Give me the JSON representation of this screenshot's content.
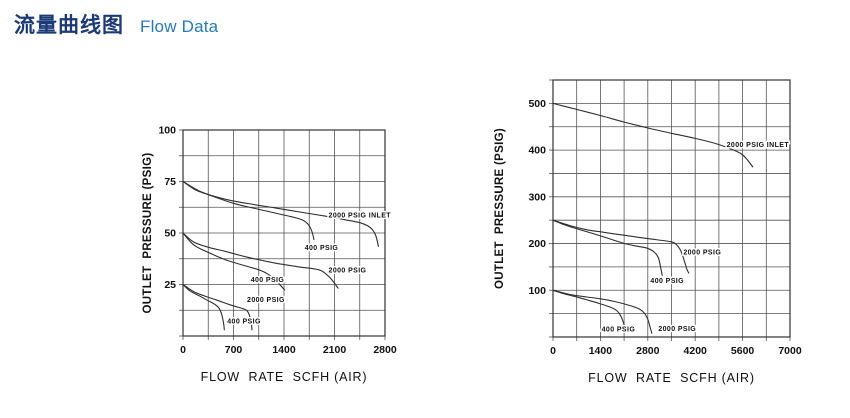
{
  "page": {
    "title_zh": "流量曲线图",
    "title_en": "Flow Data",
    "colors": {
      "title_zh": "#1b3a78",
      "title_en": "#1e7ac6",
      "curve": "#2f2f2f",
      "grid": "#555555",
      "border": "#333333",
      "text": "#111111"
    }
  },
  "chart_data": [
    {
      "id": "low-pressure",
      "type": "line",
      "title": "",
      "xlabel": "FLOW  RATE  SCFH (AIR)",
      "ylabel": "OUTLET  PRESSURE (PSIG)",
      "xlim": [
        0,
        2800
      ],
      "ylim": [
        0,
        100
      ],
      "x_ticks": [
        0,
        700,
        1400,
        2100,
        2800
      ],
      "y_ticks": [
        25,
        50,
        75,
        100
      ],
      "x_grid_step": 350,
      "y_grid_step": 12.5,
      "grid": true,
      "legend_position": "inline-curve-labels",
      "series": [
        {
          "name": "inlet-2000-psig-set-75",
          "label": "2000 PSIG INLET",
          "label_at": [
            2450,
            58.8
          ],
          "points": [
            [
              0,
              75
            ],
            [
              250,
              70
            ],
            [
              582,
              66.4
            ],
            [
              900,
              64.3
            ],
            [
              1275,
              62.2
            ],
            [
              1620,
              60.2
            ],
            [
              1969,
              58.2
            ],
            [
              2250,
              56.4
            ],
            [
              2480,
              54.7
            ],
            [
              2600,
              52.5
            ],
            [
              2670,
              49
            ],
            [
              2708,
              43.5
            ]
          ]
        },
        {
          "name": "inlet-400-psig-set-75",
          "label": "400 PSIG",
          "label_at": [
            1920,
            43
          ],
          "points": [
            [
              0,
              75
            ],
            [
              180,
              70.8
            ],
            [
              350,
              68.6
            ],
            [
              700,
              64.4
            ],
            [
              1000,
              61.9
            ],
            [
              1275,
              59.7
            ],
            [
              1500,
              57.9
            ],
            [
              1650,
              56.4
            ],
            [
              1740,
              54
            ],
            [
              1790,
              50.5
            ],
            [
              1815,
              46.8
            ]
          ]
        },
        {
          "name": "inlet-2000-psig-set-50",
          "label": "2000 PSIG",
          "label_at": [
            2280,
            32
          ],
          "points": [
            [
              0,
              50
            ],
            [
              150,
              45.6
            ],
            [
              350,
              43.1
            ],
            [
              582,
              41.1
            ],
            [
              900,
              38.2
            ],
            [
              1275,
              35.4
            ],
            [
              1600,
              33.6
            ],
            [
              1876,
              32.2
            ],
            [
              1985,
              30
            ],
            [
              2070,
              27
            ],
            [
              2150,
              23.2
            ]
          ]
        },
        {
          "name": "inlet-400-psig-set-50",
          "label": "400 PSIG",
          "label_at": [
            1171,
            27.5
          ],
          "points": [
            [
              0,
              50
            ],
            [
              150,
              44.2
            ],
            [
              350,
              40.6
            ],
            [
              582,
              37.1
            ],
            [
              800,
              34.7
            ],
            [
              1044,
              32.2
            ],
            [
              1170,
              30.2
            ],
            [
              1270,
              27.4
            ],
            [
              1350,
              24.6
            ],
            [
              1408,
              22.4
            ]
          ]
        },
        {
          "name": "inlet-2000-psig-set-25",
          "label": "2000 PSIG",
          "label_at": [
            1150,
            17.7
          ],
          "points": [
            [
              0,
              25
            ],
            [
              150,
              21.5
            ],
            [
              300,
              19.4
            ],
            [
              444,
              17.7
            ],
            [
              600,
              15.8
            ],
            [
              721,
              14.4
            ],
            [
              830,
              13.3
            ],
            [
              890,
              12.2
            ],
            [
              930,
              9
            ],
            [
              950,
              5.5
            ],
            [
              956,
              3
            ]
          ]
        },
        {
          "name": "inlet-400-psig-set-25",
          "label": "400 PSIG",
          "label_at": [
            846,
            7.2
          ],
          "points": [
            [
              0,
              25
            ],
            [
              100,
              21.8
            ],
            [
              236,
              19.3
            ],
            [
              350,
              17.1
            ],
            [
              444,
              15.3
            ],
            [
              500,
              13.5
            ],
            [
              540,
              10
            ],
            [
              565,
              5.5
            ],
            [
              572,
              3
            ]
          ]
        }
      ]
    },
    {
      "id": "high-pressure",
      "type": "line",
      "title": "",
      "xlabel": "FLOW  RATE  SCFH (AIR)",
      "ylabel": "OUTLET  PRESSURE (PSIG)",
      "xlim": [
        0,
        7000
      ],
      "ylim": [
        0,
        550
      ],
      "x_ticks": [
        0,
        1400,
        2800,
        4200,
        5600,
        7000
      ],
      "y_ticks": [
        100,
        200,
        300,
        400,
        500
      ],
      "x_grid_step": 700,
      "y_grid_step": 50,
      "grid": true,
      "legend_position": "inline-curve-labels",
      "series": [
        {
          "name": "inlet-2000-psig-set-500",
          "label": "2000 PSIG INLET",
          "label_at": [
            6050,
            412
          ],
          "points": [
            [
              0,
              500
            ],
            [
              700,
              487
            ],
            [
              1400,
              474
            ],
            [
              2100,
              460
            ],
            [
              2878,
              446
            ],
            [
              3500,
              436
            ],
            [
              4200,
              425
            ],
            [
              4800,
              414
            ],
            [
              5200,
              404
            ],
            [
              5540,
              393
            ],
            [
              5720,
              381
            ],
            [
              5900,
              364
            ]
          ]
        },
        {
          "name": "inlet-2000-psig-set-250",
          "label": "2000 PSIG",
          "label_at": [
            4409,
            182
          ],
          "points": [
            [
              0,
              250
            ],
            [
              500,
              238.5
            ],
            [
              1000,
              229.5
            ],
            [
              1500,
              224
            ],
            [
              2072,
              218
            ],
            [
              2800,
              210.5
            ],
            [
              3471,
              204
            ],
            [
              3640,
              198
            ],
            [
              3767,
              186
            ],
            [
              3870,
              165
            ],
            [
              3950,
              146
            ],
            [
              4008,
              137
            ]
          ]
        },
        {
          "name": "inlet-400-psig-set-250",
          "label": "400 PSIG",
          "label_at": [
            3373,
            121
          ],
          "points": [
            [
              0,
              250
            ],
            [
              350,
              240
            ],
            [
              689,
              232
            ],
            [
              1380,
              217
            ],
            [
              2072,
              201
            ],
            [
              2500,
              194
            ],
            [
              2780,
              190
            ],
            [
              3000,
              181
            ],
            [
              3120,
              168
            ],
            [
              3195,
              143
            ],
            [
              3226,
              132
            ]
          ]
        },
        {
          "name": "inlet-2000-psig-set-100",
          "label": "2000 PSIG",
          "label_at": [
            3670,
            18
          ],
          "points": [
            [
              0,
              100
            ],
            [
              500,
              91
            ],
            [
              1000,
              85.5
            ],
            [
              1379,
              82
            ],
            [
              1750,
              77
            ],
            [
              2072,
              71.5
            ],
            [
              2350,
              65.5
            ],
            [
              2550,
              60
            ],
            [
              2700,
              51
            ],
            [
              2800,
              38
            ],
            [
              2880,
              18
            ],
            [
              2918,
              8
            ]
          ]
        },
        {
          "name": "inlet-400-psig-set-100",
          "label": "400 PSIG",
          "label_at": [
            1932,
            17
          ],
          "points": [
            [
              0,
              100
            ],
            [
              350,
              92
            ],
            [
              689,
              86
            ],
            [
              1050,
              78.5
            ],
            [
              1379,
              71.5
            ],
            [
              1650,
              65
            ],
            [
              1850,
              58.5
            ],
            [
              1960,
              50
            ],
            [
              2050,
              37
            ],
            [
              2100,
              26
            ],
            [
              2118,
              21
            ]
          ]
        }
      ]
    }
  ]
}
